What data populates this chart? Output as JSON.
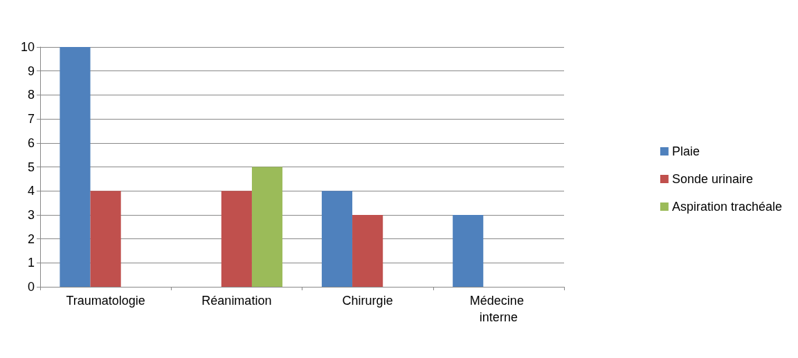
{
  "chart_data": {
    "type": "bar",
    "categories": [
      "Traumatologie",
      "Réanimation",
      "Chirurgie",
      "Médecine interne"
    ],
    "series": [
      {
        "name": "Plaie",
        "color": "#4f81bd",
        "values": [
          10,
          0,
          4,
          3
        ]
      },
      {
        "name": "Sonde urinaire",
        "color": "#c0504d",
        "values": [
          4,
          4,
          3,
          0
        ]
      },
      {
        "name": "Aspiration trachéale",
        "color": "#9bbb59",
        "values": [
          0,
          5,
          0,
          0
        ]
      }
    ],
    "ylim": [
      0,
      10
    ],
    "yticks": [
      0,
      1,
      2,
      3,
      4,
      5,
      6,
      7,
      8,
      9,
      10
    ],
    "grid": "y",
    "legend": "right"
  }
}
